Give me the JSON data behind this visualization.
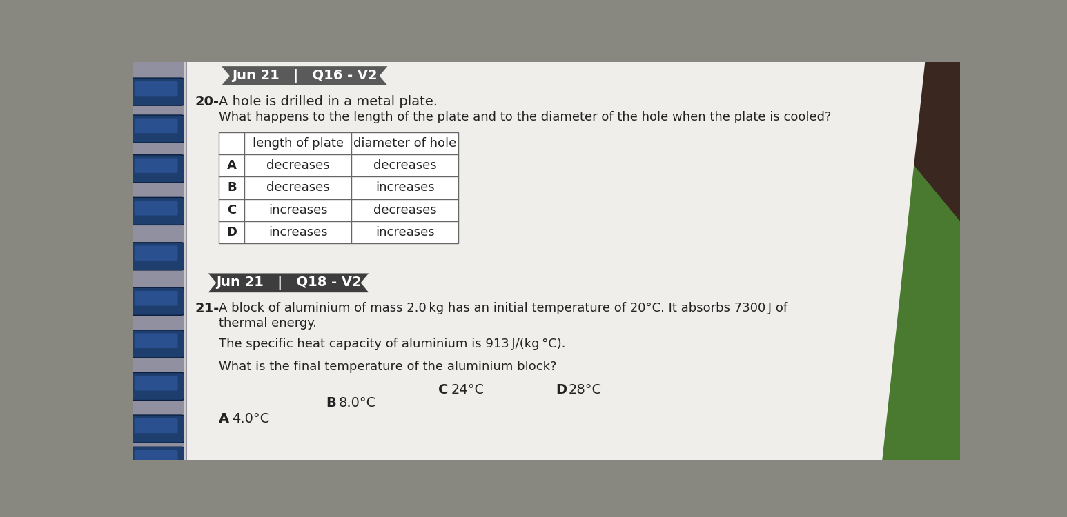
{
  "header1_text": "Jun 21   |   Q16 - V2",
  "header1_bg": "#5a5a5a",
  "header1_fg": "#ffffff",
  "q20_label": "20-",
  "q20_line1": "A hole is drilled in a metal plate.",
  "q20_line2": "What happens to the length of the plate and to the diameter of the hole when the plate is cooled?",
  "table_headers": [
    "",
    "length of plate",
    "diameter of hole"
  ],
  "table_rows": [
    [
      "A",
      "decreases",
      "decreases"
    ],
    [
      "B",
      "decreases",
      "increases"
    ],
    [
      "C",
      "increases",
      "decreases"
    ],
    [
      "D",
      "increases",
      "increases"
    ]
  ],
  "header2_text": "Jun 21   |   Q18 - V2",
  "header2_bg": "#3d3d3d",
  "header2_fg": "#ffffff",
  "q21_label": "21-",
  "q21_line1": "A block of aluminium of mass 2.0 kg has an initial temperature of 20°C. It absorbs 7300 J of",
  "q21_line2": "thermal energy.",
  "q21_line3": "The specific heat capacity of aluminium is 913 J/(kg °C).",
  "q21_line4": "What is the final temperature of the aluminium block?",
  "q21_options": [
    [
      "A",
      "4.0°C"
    ],
    [
      "B",
      "8.0°C"
    ],
    [
      "C",
      "24°C"
    ],
    [
      "D",
      "28°C"
    ]
  ],
  "paper_color": "#f0eeeb",
  "outer_bg": "#888880",
  "binding_color": "#2a4a7a",
  "tab_color": "#1a3a6a"
}
